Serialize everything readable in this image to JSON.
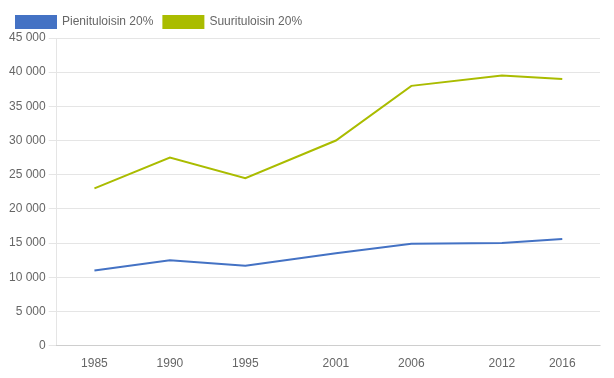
{
  "chart_data": {
    "type": "line",
    "x": [
      1985,
      1990,
      1995,
      2001,
      2006,
      2012,
      2016
    ],
    "series": [
      {
        "name": "Pienituloisin 20%",
        "color": "#4472C4",
        "values": [
          11000,
          12500,
          11700,
          13500,
          14900,
          15000,
          15600
        ]
      },
      {
        "name": "Suurituloisin 20%",
        "color": "#AABC00",
        "values": [
          23000,
          27500,
          24500,
          30000,
          38000,
          39500,
          39000
        ]
      }
    ],
    "xlim": [
      1982.5,
      2018.5
    ],
    "xticks": [
      1985,
      1990,
      1995,
      2001,
      2006,
      2012,
      2016
    ],
    "ylim": [
      0,
      45000
    ],
    "yticks": [
      0,
      {
        "value": 5000,
        "label": "5 000"
      },
      {
        "value": 10000,
        "label": "10 000"
      },
      {
        "value": 15000,
        "label": "15 000"
      },
      {
        "value": 20000,
        "label": "20 000"
      },
      {
        "value": 25000,
        "label": "25 000"
      },
      {
        "value": 30000,
        "label": "30 000"
      },
      {
        "value": 35000,
        "label": "35 000"
      },
      {
        "value": 40000,
        "label": "40 000"
      },
      {
        "value": 45000,
        "label": "45 000"
      }
    ],
    "grid": "y",
    "legend": "upper left"
  }
}
